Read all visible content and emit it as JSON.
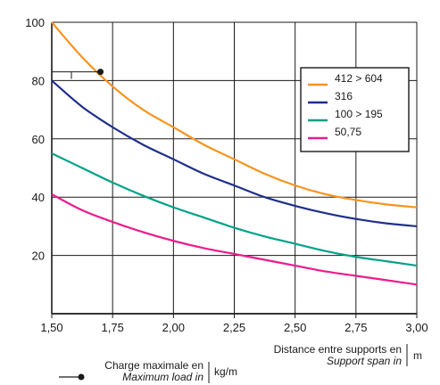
{
  "chart_data": {
    "type": "line",
    "xlim": [
      1.5,
      3.0
    ],
    "ylim": [
      0,
      100
    ],
    "x_ticks": [
      "1,50",
      "1,75",
      "2,00",
      "2,25",
      "2,50",
      "2,75",
      "3,00"
    ],
    "y_ticks": [
      "20",
      "40",
      "60",
      "80",
      "100"
    ],
    "grid": true,
    "legend_position": "top-right",
    "x_caption": {
      "label": "Distance entre supports en",
      "label_en": "Support span in",
      "unit": "m"
    },
    "y_caption": {
      "label": "Charge maximale en",
      "label_en": "Maximum load in",
      "unit": "kg/m"
    },
    "example_point": {
      "x": 1.7,
      "y": 83
    },
    "series": [
      {
        "name": "412 > 604",
        "color": "#f7941d",
        "x": [
          1.5,
          1.625,
          1.75,
          1.875,
          2.0,
          2.125,
          2.25,
          2.375,
          2.5,
          2.625,
          2.75,
          2.875,
          3.0
        ],
        "y": [
          100,
          88,
          78,
          70,
          64,
          58,
          53,
          48,
          44,
          41,
          39,
          37.5,
          36.5
        ]
      },
      {
        "name": "316",
        "color": "#1f2f8c",
        "x": [
          1.5,
          1.625,
          1.75,
          1.875,
          2.0,
          2.125,
          2.25,
          2.375,
          2.5,
          2.625,
          2.75,
          2.875,
          3.0
        ],
        "y": [
          80,
          71,
          64,
          58,
          53,
          48,
          44,
          40,
          37,
          34.5,
          32.5,
          31,
          30
        ]
      },
      {
        "name": "100 > 195",
        "color": "#00a287",
        "x": [
          1.5,
          1.625,
          1.75,
          1.875,
          2.0,
          2.125,
          2.25,
          2.375,
          2.5,
          2.625,
          2.75,
          2.875,
          3.0
        ],
        "y": [
          55,
          50,
          45,
          40.5,
          36.5,
          33,
          29.5,
          26.5,
          24,
          21.5,
          19.5,
          18,
          16.5
        ]
      },
      {
        "name": "50,75",
        "color": "#ec1c8d",
        "x": [
          1.5,
          1.625,
          1.75,
          1.875,
          2.0,
          2.125,
          2.25,
          2.375,
          2.5,
          2.625,
          2.75,
          2.875,
          3.0
        ],
        "y": [
          41,
          35.5,
          31.5,
          28,
          25,
          22.5,
          20.5,
          18.5,
          16.5,
          14.5,
          13,
          11.5,
          10
        ]
      }
    ]
  }
}
